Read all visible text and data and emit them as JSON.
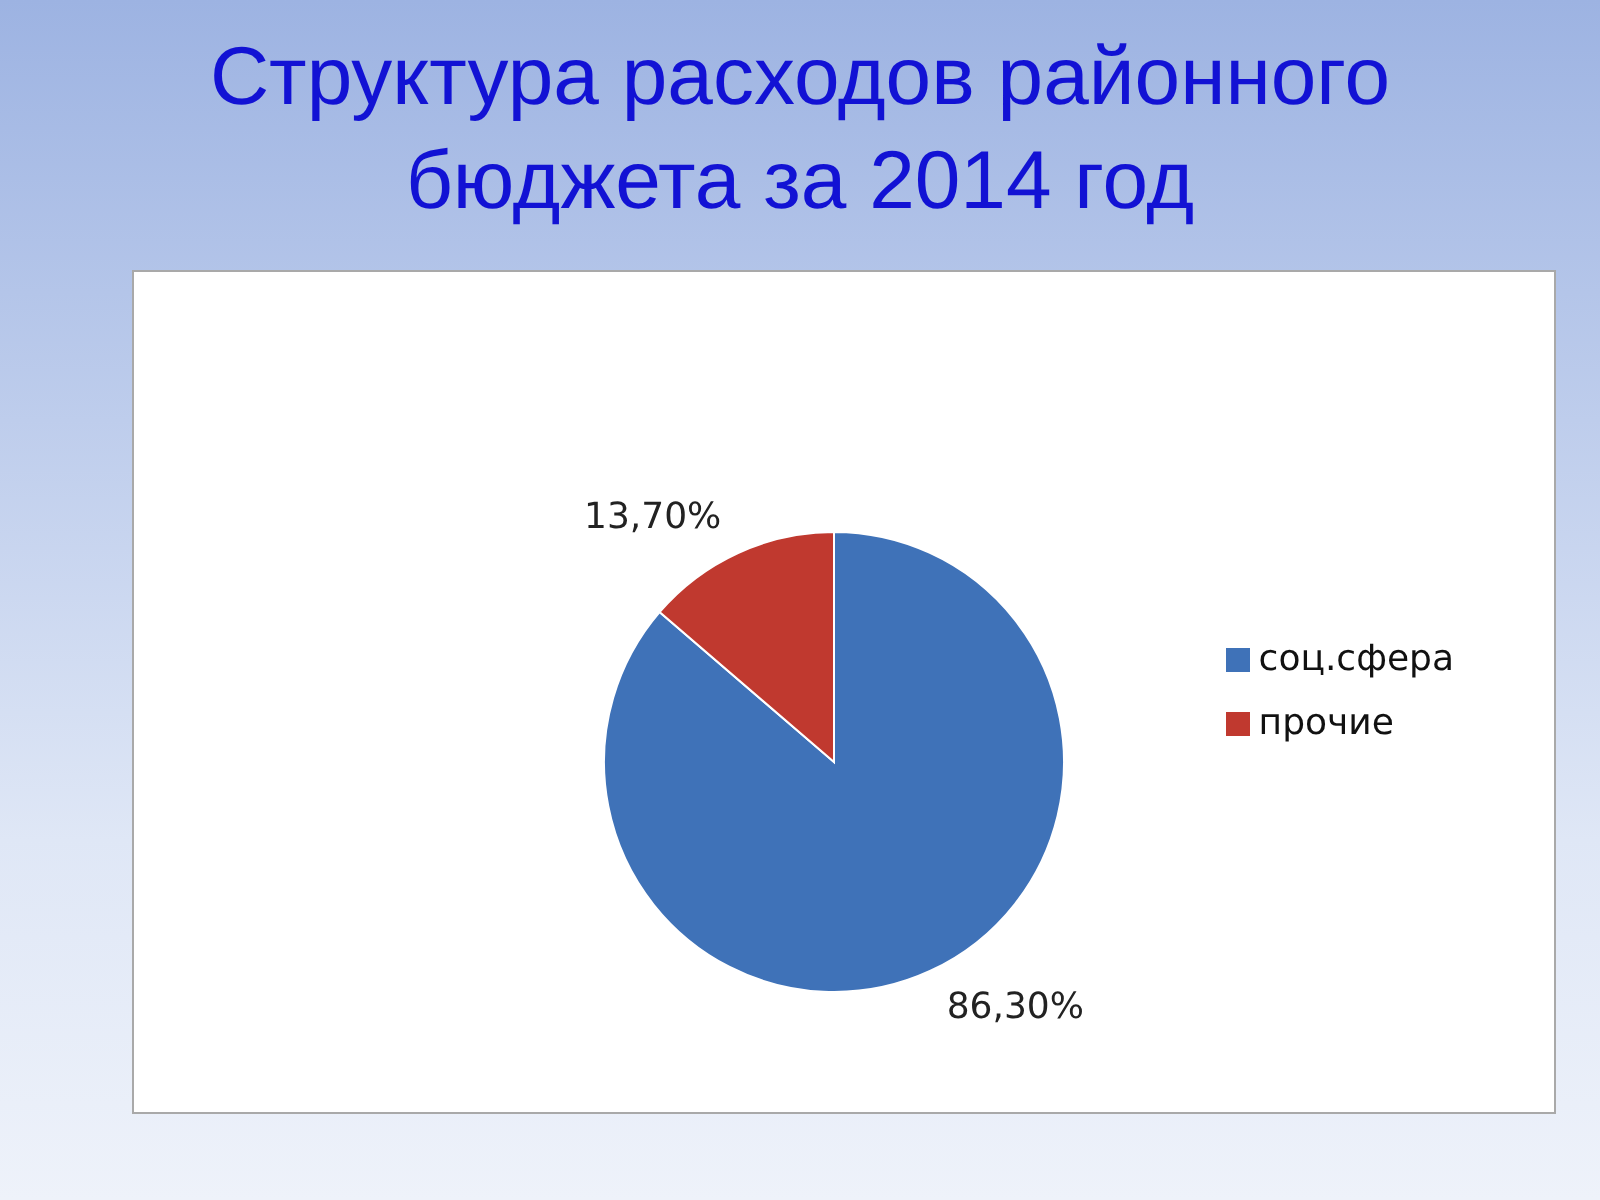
{
  "chart_data": {
    "type": "pie",
    "title": "Структура расходов районного бюджета за 2014 год",
    "categories": [
      "соц.сфера",
      "прочие"
    ],
    "values": [
      86.3,
      13.7
    ],
    "colors": [
      "#3f72b8",
      "#c0392f"
    ],
    "value_labels": [
      "86,30%",
      "13,70%"
    ],
    "legend": "right"
  }
}
